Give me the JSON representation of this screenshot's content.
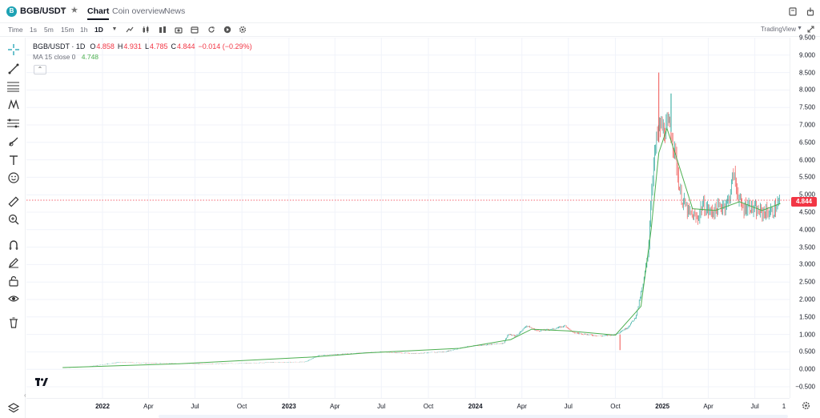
{
  "header": {
    "coin_logo_text": "B",
    "symbol": "BGB/USDT",
    "tabs": [
      "Chart",
      "Coin overview",
      "News"
    ],
    "active_tab": "Chart"
  },
  "toolbar": {
    "time_label": "Time",
    "timeframes": [
      "1s",
      "5m",
      "15m",
      "1h",
      "1D"
    ],
    "active_timeframe": "1D",
    "provider": "TradingView"
  },
  "legend": {
    "title": "BGB/USDT · 1D",
    "o_key": "O",
    "o_val": "4.858",
    "h_key": "H",
    "h_val": "4.931",
    "l_key": "L",
    "l_val": "4.785",
    "c_key": "C",
    "c_val": "4.844",
    "change": "−0.014 (−0.29%)",
    "ma_label": "MA 15 close 0",
    "ma_value": "4.748"
  },
  "price_tag": "4.844",
  "price_axis": [
    "9.500",
    "9.000",
    "8.500",
    "8.000",
    "7.500",
    "7.000",
    "6.500",
    "6.000",
    "5.500",
    "5.000",
    "4.500",
    "4.000",
    "3.500",
    "3.000",
    "2.500",
    "2.000",
    "1.500",
    "1.000",
    "0.500",
    "0.000",
    "−0.500"
  ],
  "time_axis": [
    {
      "label": "2022",
      "bold": true
    },
    {
      "label": "Apr",
      "bold": false
    },
    {
      "label": "Jul",
      "bold": false
    },
    {
      "label": "Oct",
      "bold": false
    },
    {
      "label": "2023",
      "bold": true
    },
    {
      "label": "Apr",
      "bold": false
    },
    {
      "label": "Jul",
      "bold": false
    },
    {
      "label": "Oct",
      "bold": false
    },
    {
      "label": "2024",
      "bold": true
    },
    {
      "label": "Apr",
      "bold": false
    },
    {
      "label": "Jul",
      "bold": false
    },
    {
      "label": "Oct",
      "bold": false
    },
    {
      "label": "2025",
      "bold": true
    },
    {
      "label": "Apr",
      "bold": false
    },
    {
      "label": "Jul",
      "bold": false
    },
    {
      "label": "1",
      "bold": false
    }
  ],
  "colors": {
    "up": "#26a69a",
    "down": "#ef5350",
    "ma": "#4caf50",
    "price_line": "#f23645",
    "grid": "#f0f3fa"
  },
  "chart_data": {
    "type": "line",
    "series": [
      {
        "name": "BGB/USDT",
        "x": [
          "2021-10-15",
          "2021-12-01",
          "2022-02-01",
          "2022-04-01",
          "2022-06-01",
          "2022-08-01",
          "2022-10-01",
          "2022-12-01",
          "2023-02-01",
          "2023-03-01",
          "2023-05-01",
          "2023-07-01",
          "2023-09-01",
          "2023-11-01",
          "2023-12-15",
          "2024-01-20",
          "2024-02-25",
          "2024-03-05",
          "2024-03-20",
          "2024-04-10",
          "2024-05-01",
          "2024-06-01",
          "2024-06-25",
          "2024-07-10",
          "2024-08-05",
          "2024-09-01",
          "2024-10-01",
          "2024-10-25",
          "2024-11-10",
          "2024-11-25",
          "2024-12-05",
          "2024-12-12",
          "2024-12-20",
          "2024-12-27",
          "2025-01-05",
          "2025-01-15",
          "2025-01-25",
          "2025-02-05",
          "2025-02-20",
          "2025-03-10",
          "2025-03-20",
          "2025-04-05",
          "2025-04-20",
          "2025-05-10",
          "2025-05-20",
          "2025-06-05",
          "2025-06-20",
          "2025-07-05",
          "2025-07-20",
          "2025-08-05",
          "2025-08-20"
        ],
        "values": [
          0.05,
          0.07,
          0.2,
          0.18,
          0.16,
          0.16,
          0.17,
          0.2,
          0.21,
          0.4,
          0.45,
          0.5,
          0.45,
          0.5,
          0.65,
          0.7,
          0.75,
          1.0,
          0.95,
          1.25,
          1.1,
          1.15,
          1.25,
          1.05,
          1.0,
          0.95,
          1.0,
          1.2,
          1.5,
          2.5,
          3.5,
          5.5,
          6.5,
          7.0,
          6.8,
          7.0,
          6.3,
          5.0,
          4.5,
          4.3,
          4.7,
          4.5,
          4.6,
          4.8,
          5.6,
          4.6,
          4.7,
          4.5,
          4.5,
          4.5,
          4.84
        ]
      },
      {
        "name": "MA 15 close 0",
        "x": [
          "2021-10-15",
          "2022-06-01",
          "2023-02-15",
          "2023-06-01",
          "2023-12-01",
          "2024-03-10",
          "2024-04-20",
          "2024-07-01",
          "2024-10-01",
          "2024-11-20",
          "2024-12-10",
          "2024-12-25",
          "2025-01-10",
          "2025-01-30",
          "2025-03-01",
          "2025-04-15",
          "2025-06-01",
          "2025-07-15",
          "2025-08-20"
        ],
        "values": [
          0.05,
          0.16,
          0.35,
          0.47,
          0.6,
          0.85,
          1.15,
          1.1,
          0.98,
          1.8,
          4.0,
          6.2,
          6.9,
          6.0,
          4.6,
          4.55,
          4.8,
          4.55,
          4.75
        ]
      }
    ],
    "ylim": [
      -0.5,
      9.5
    ],
    "last_price": 4.844,
    "grid": true,
    "legend": "top-left"
  }
}
